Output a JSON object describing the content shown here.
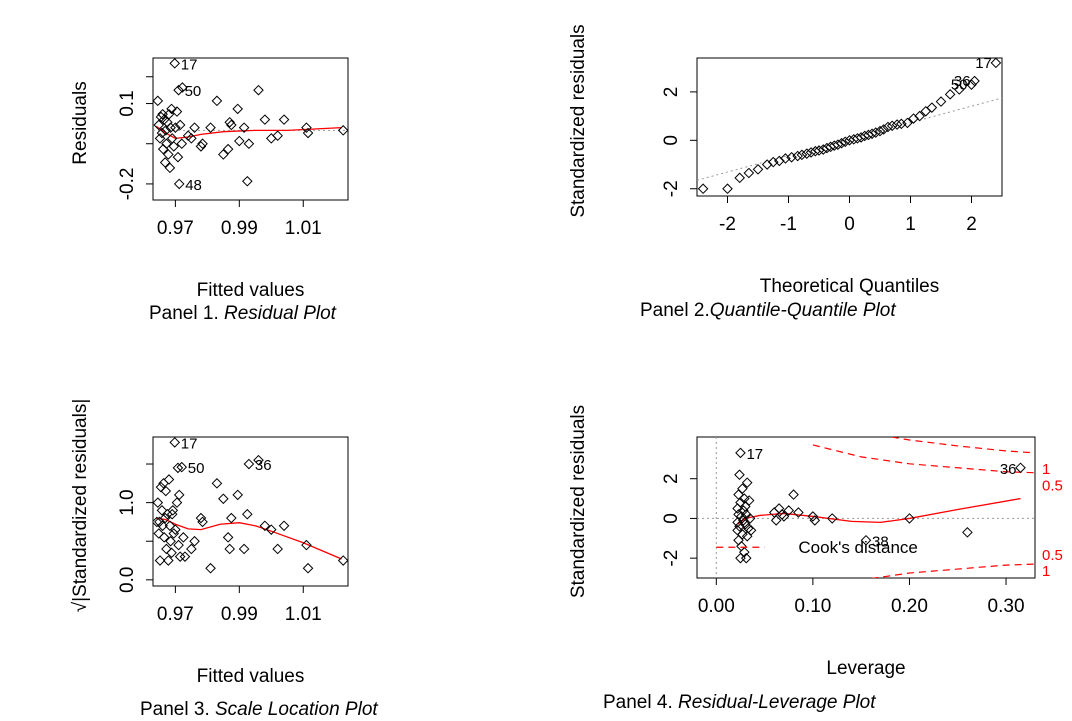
{
  "captions": [
    {
      "prefix": "Panel 1. ",
      "title": "Residual Plot"
    },
    {
      "prefix": "Panel 2.",
      "title": "Quantile-Quantile Plot"
    },
    {
      "prefix": "Panel 3. ",
      "title": "Scale Location Plot"
    },
    {
      "prefix": "Panel 4. ",
      "title": "Residual-Leverage Plot"
    }
  ],
  "colors": {
    "points": "#000000",
    "smoother": "#ff0000",
    "reference": "#999999",
    "cooks": "#ff0000"
  },
  "chart_data": [
    {
      "type": "scatter",
      "title": "",
      "xlabel": "Fitted values",
      "ylabel": "Residuals",
      "xlim": [
        0.963,
        1.024
      ],
      "ylim": [
        -0.26,
        0.27
      ],
      "xticks": [
        {
          "v": 0.97,
          "label": "0.97"
        },
        {
          "v": 0.99,
          "label": "0.99"
        },
        {
          "v": 1.01,
          "label": "1.01"
        }
      ],
      "yticks": [
        {
          "v": -0.2,
          "label": "-0.2"
        },
        {
          "v": 0.1,
          "label": "0.1"
        }
      ],
      "yminor": [
        0.2,
        -0.05
      ],
      "reference_line": {
        "y": 0,
        "style": "dotted"
      },
      "points": [
        [
          0.9645,
          0.11
        ],
        [
          0.9655,
          0.05
        ],
        [
          0.9648,
          0.02
        ],
        [
          0.9652,
          -0.03
        ],
        [
          0.966,
          0.06
        ],
        [
          0.9658,
          -0.01
        ],
        [
          0.9665,
          0.04
        ],
        [
          0.9662,
          -0.07
        ],
        [
          0.967,
          0.0
        ],
        [
          0.9668,
          -0.12
        ],
        [
          0.9675,
          0.03
        ],
        [
          0.9672,
          -0.05
        ],
        [
          0.968,
          0.06
        ],
        [
          0.9678,
          -0.09
        ],
        [
          0.9685,
          0.01
        ],
        [
          0.9683,
          -0.14
        ],
        [
          0.969,
          -0.03
        ],
        [
          0.9688,
          0.08
        ],
        [
          0.9695,
          -0.06
        ],
        [
          0.97,
          0.01
        ],
        [
          0.9705,
          0.07
        ],
        [
          0.9708,
          -0.1
        ],
        [
          0.9712,
          -0.2
        ],
        [
          0.9715,
          0.02
        ],
        [
          0.972,
          -0.05
        ],
        [
          0.9698,
          0.25
        ],
        [
          0.971,
          0.15
        ],
        [
          0.9722,
          0.16
        ],
        [
          0.974,
          -0.02
        ],
        [
          0.975,
          -0.03
        ],
        [
          0.976,
          0.01
        ],
        [
          0.978,
          -0.06
        ],
        [
          0.9785,
          -0.05
        ],
        [
          0.981,
          0.01
        ],
        [
          0.983,
          0.11
        ],
        [
          0.985,
          -0.09
        ],
        [
          0.9865,
          -0.07
        ],
        [
          0.987,
          0.03
        ],
        [
          0.9875,
          0.02
        ],
        [
          0.9895,
          0.08
        ],
        [
          0.99,
          -0.04
        ],
        [
          0.9915,
          0.01
        ],
        [
          0.9925,
          -0.19
        ],
        [
          0.993,
          -0.05
        ],
        [
          0.996,
          0.15
        ],
        [
          0.998,
          0.04
        ],
        [
          1.0,
          -0.03
        ],
        [
          1.002,
          -0.02
        ],
        [
          1.004,
          0.04
        ],
        [
          1.011,
          0.01
        ],
        [
          1.0115,
          -0.01
        ],
        [
          1.0225,
          0.0
        ]
      ],
      "labels": [
        {
          "x": 0.9698,
          "y": 0.25,
          "text": "17"
        },
        {
          "x": 0.971,
          "y": 0.15,
          "text": "50"
        },
        {
          "x": 0.9712,
          "y": -0.2,
          "text": "48"
        }
      ],
      "smoother": [
        [
          0.964,
          0.015
        ],
        [
          0.967,
          -0.01
        ],
        [
          0.97,
          -0.03
        ],
        [
          0.974,
          -0.025
        ],
        [
          0.978,
          -0.015
        ],
        [
          0.985,
          -0.005
        ],
        [
          0.995,
          0.0
        ],
        [
          1.005,
          0.0
        ],
        [
          1.022,
          0.01
        ]
      ]
    },
    {
      "type": "scatter",
      "title": "",
      "xlabel": "Theoretical Quantiles",
      "ylabel": "Standardized residuals",
      "xlim": [
        -2.5,
        2.5
      ],
      "ylim": [
        -2.3,
        3.4
      ],
      "xticks": [
        {
          "v": -2,
          "label": "-2"
        },
        {
          "v": -1,
          "label": "-1"
        },
        {
          "v": 0,
          "label": "0"
        },
        {
          "v": 1,
          "label": "1"
        },
        {
          "v": 2,
          "label": "2"
        }
      ],
      "yticks": [
        {
          "v": -2,
          "label": "-2"
        },
        {
          "v": 0,
          "label": "0"
        },
        {
          "v": 2,
          "label": "2"
        }
      ],
      "reference_line": {
        "x1": -2.5,
        "y1": -1.65,
        "x2": 2.5,
        "y2": 1.75,
        "style": "dotted"
      },
      "points": [
        [
          -2.4,
          -2.0
        ],
        [
          -2.0,
          -2.0
        ],
        [
          -1.8,
          -1.55
        ],
        [
          -1.65,
          -1.35
        ],
        [
          -1.5,
          -1.2
        ],
        [
          -1.35,
          -1.0
        ],
        [
          -1.25,
          -0.9
        ],
        [
          -1.15,
          -0.85
        ],
        [
          -1.05,
          -0.75
        ],
        [
          -0.95,
          -0.7
        ],
        [
          -0.85,
          -0.65
        ],
        [
          -0.78,
          -0.6
        ],
        [
          -0.7,
          -0.55
        ],
        [
          -0.63,
          -0.5
        ],
        [
          -0.56,
          -0.45
        ],
        [
          -0.5,
          -0.42
        ],
        [
          -0.43,
          -0.38
        ],
        [
          -0.37,
          -0.32
        ],
        [
          -0.31,
          -0.27
        ],
        [
          -0.25,
          -0.22
        ],
        [
          -0.19,
          -0.18
        ],
        [
          -0.13,
          -0.12
        ],
        [
          -0.07,
          -0.06
        ],
        [
          0.0,
          0.0
        ],
        [
          0.07,
          0.04
        ],
        [
          0.13,
          0.08
        ],
        [
          0.19,
          0.12
        ],
        [
          0.25,
          0.18
        ],
        [
          0.31,
          0.22
        ],
        [
          0.37,
          0.27
        ],
        [
          0.43,
          0.32
        ],
        [
          0.5,
          0.38
        ],
        [
          0.56,
          0.45
        ],
        [
          0.63,
          0.55
        ],
        [
          0.7,
          0.6
        ],
        [
          0.78,
          0.65
        ],
        [
          0.85,
          0.68
        ],
        [
          0.95,
          0.72
        ],
        [
          1.05,
          0.9
        ],
        [
          1.15,
          1.0
        ],
        [
          1.25,
          1.2
        ],
        [
          1.35,
          1.35
        ],
        [
          1.5,
          1.6
        ],
        [
          1.65,
          1.9
        ],
        [
          1.8,
          2.1
        ],
        [
          2.0,
          2.3
        ],
        [
          2.05,
          2.45
        ],
        [
          2.4,
          3.2
        ]
      ],
      "labels": [
        {
          "x": 2.4,
          "y": 3.2,
          "text": "17"
        },
        {
          "x": 2.05,
          "y": 2.45,
          "text": "36"
        },
        {
          "x": 2.0,
          "y": 2.3,
          "text": "50"
        }
      ]
    },
    {
      "type": "scatter",
      "title": "",
      "xlabel": "Fitted values",
      "ylabel": "√|Standardized residuals|",
      "xlim": [
        0.963,
        1.024
      ],
      "ylim": [
        -0.08,
        1.85
      ],
      "xticks": [
        {
          "v": 0.97,
          "label": "0.97"
        },
        {
          "v": 0.99,
          "label": "0.99"
        },
        {
          "v": 1.01,
          "label": "1.01"
        }
      ],
      "yticks": [
        {
          "v": 0.0,
          "label": "0.0"
        },
        {
          "v": 1.0,
          "label": "1.0"
        }
      ],
      "yminor": [
        0.5,
        1.5
      ],
      "points": [
        [
          0.9642,
          0.75
        ],
        [
          0.9645,
          1.0
        ],
        [
          0.9648,
          0.6
        ],
        [
          0.965,
          0.75
        ],
        [
          0.9652,
          0.25
        ],
        [
          0.9655,
          1.2
        ],
        [
          0.9658,
          0.9
        ],
        [
          0.966,
          0.7
        ],
        [
          0.9663,
          1.25
        ],
        [
          0.9665,
          0.55
        ],
        [
          0.9668,
          0.8
        ],
        [
          0.967,
          1.15
        ],
        [
          0.9672,
          0.4
        ],
        [
          0.9675,
          0.85
        ],
        [
          0.9678,
          0.25
        ],
        [
          0.968,
          1.3
        ],
        [
          0.9683,
          0.7
        ],
        [
          0.9685,
          0.5
        ],
        [
          0.9688,
          0.35
        ],
        [
          0.969,
          0.85
        ],
        [
          0.9692,
          0.9
        ],
        [
          0.9695,
          0.6
        ],
        [
          0.9698,
          1.78
        ],
        [
          0.97,
          0.65
        ],
        [
          0.9705,
          1.0
        ],
        [
          0.9708,
          1.45
        ],
        [
          0.971,
          0.45
        ],
        [
          0.9712,
          1.1
        ],
        [
          0.9715,
          0.3
        ],
        [
          0.972,
          1.46
        ],
        [
          0.9725,
          0.55
        ],
        [
          0.973,
          0.3
        ],
        [
          0.975,
          0.4
        ],
        [
          0.976,
          0.5
        ],
        [
          0.978,
          0.8
        ],
        [
          0.9785,
          0.75
        ],
        [
          0.981,
          0.15
        ],
        [
          0.983,
          1.25
        ],
        [
          0.985,
          1.05
        ],
        [
          0.9865,
          0.55
        ],
        [
          0.987,
          0.4
        ],
        [
          0.9875,
          0.8
        ],
        [
          0.9895,
          1.1
        ],
        [
          0.9915,
          0.4
        ],
        [
          0.9925,
          0.85
        ],
        [
          0.993,
          1.5
        ],
        [
          0.996,
          1.55
        ],
        [
          0.998,
          0.7
        ],
        [
          1.0,
          0.65
        ],
        [
          1.002,
          0.4
        ],
        [
          1.004,
          0.7
        ],
        [
          1.011,
          0.45
        ],
        [
          1.0115,
          0.15
        ],
        [
          1.0225,
          0.25
        ]
      ],
      "labels": [
        {
          "x": 0.9698,
          "y": 1.78,
          "text": "17"
        },
        {
          "x": 0.972,
          "y": 1.46,
          "text": "50"
        },
        {
          "x": 0.993,
          "y": 1.5,
          "text": "36"
        }
      ],
      "smoother": [
        [
          0.964,
          0.8
        ],
        [
          0.967,
          0.78
        ],
        [
          0.97,
          0.72
        ],
        [
          0.974,
          0.66
        ],
        [
          0.978,
          0.65
        ],
        [
          0.984,
          0.72
        ],
        [
          0.99,
          0.74
        ],
        [
          0.995,
          0.7
        ],
        [
          1.0,
          0.63
        ],
        [
          1.01,
          0.48
        ],
        [
          1.022,
          0.27
        ]
      ]
    },
    {
      "type": "scatter",
      "title": "",
      "xlabel": "Leverage",
      "ylabel": "Standardized residuals",
      "xlim": [
        -0.02,
        0.33
      ],
      "ylim": [
        -3.0,
        4.1
      ],
      "xticks": [
        {
          "v": 0.0,
          "label": "0.00"
        },
        {
          "v": 0.1,
          "label": "0.10"
        },
        {
          "v": 0.2,
          "label": "0.20"
        },
        {
          "v": 0.3,
          "label": "0.30"
        }
      ],
      "yticks": [
        {
          "v": -2,
          "label": "-2"
        },
        {
          "v": 0,
          "label": "0"
        },
        {
          "v": 2,
          "label": "2"
        }
      ],
      "reference_line": {
        "y": 0,
        "style": "dotted",
        "x": 0,
        "x_style": "dotted"
      },
      "legend": "Cook's distance",
      "cooks_contours": [
        {
          "level": "1",
          "upper": [
            [
              0.02,
              9
            ],
            [
              0.05,
              7
            ],
            [
              0.1,
              5.1
            ],
            [
              0.15,
              4.35
            ],
            [
              0.2,
              3.95
            ],
            [
              0.25,
              3.65
            ],
            [
              0.3,
              3.4
            ],
            [
              0.33,
              3.3
            ]
          ]
        },
        {
          "level": "0.5",
          "upper": [
            [
              0.1,
              3.7
            ],
            [
              0.15,
              3.1
            ],
            [
              0.2,
              2.75
            ],
            [
              0.25,
              2.55
            ],
            [
              0.3,
              2.35
            ],
            [
              0.33,
              2.3
            ]
          ]
        }
      ],
      "contour_labels": [
        {
          "text": "1",
          "y": 2.55
        },
        {
          "text": "0.5",
          "y": 1.7
        },
        {
          "text": "0.5",
          "y": -1.8
        },
        {
          "text": "1",
          "y": -2.6
        }
      ],
      "points": [
        [
          0.022,
          -0.2
        ],
        [
          0.022,
          0.5
        ],
        [
          0.022,
          -0.6
        ],
        [
          0.023,
          1.2
        ],
        [
          0.023,
          0.2
        ],
        [
          0.023,
          -1.1
        ],
        [
          0.024,
          2.2
        ],
        [
          0.024,
          -0.4
        ],
        [
          0.025,
          0.8
        ],
        [
          0.025,
          -2.0
        ],
        [
          0.026,
          0.1
        ],
        [
          0.026,
          -1.4
        ],
        [
          0.027,
          1.5
        ],
        [
          0.027,
          -0.8
        ],
        [
          0.028,
          0.4
        ],
        [
          0.028,
          -0.1
        ],
        [
          0.029,
          -1.7
        ],
        [
          0.029,
          1.0
        ],
        [
          0.03,
          -0.3
        ],
        [
          0.03,
          0.6
        ],
        [
          0.031,
          -2.0
        ],
        [
          0.031,
          0.2
        ],
        [
          0.032,
          1.8
        ],
        [
          0.032,
          -0.9
        ],
        [
          0.033,
          -0.5
        ],
        [
          0.034,
          0.9
        ],
        [
          0.035,
          0.0
        ],
        [
          0.036,
          -0.6
        ],
        [
          0.025,
          3.3
        ],
        [
          0.06,
          0.3
        ],
        [
          0.062,
          -0.1
        ],
        [
          0.065,
          0.5
        ],
        [
          0.068,
          0.2
        ],
        [
          0.07,
          0.1
        ],
        [
          0.075,
          0.4
        ],
        [
          0.08,
          1.2
        ],
        [
          0.085,
          0.3
        ],
        [
          0.1,
          0.1
        ],
        [
          0.102,
          -0.1
        ],
        [
          0.12,
          0.0
        ],
        [
          0.155,
          -1.1
        ],
        [
          0.2,
          0.0
        ],
        [
          0.26,
          -0.7
        ],
        [
          0.315,
          2.55
        ]
      ],
      "labels": [
        {
          "x": 0.025,
          "y": 3.3,
          "text": "17"
        },
        {
          "x": 0.315,
          "y": 2.55,
          "text": "36"
        },
        {
          "x": 0.155,
          "y": -1.1,
          "text": "38"
        }
      ],
      "smoother": [
        [
          0.022,
          -0.3
        ],
        [
          0.03,
          0.0
        ],
        [
          0.045,
          0.15
        ],
        [
          0.07,
          0.25
        ],
        [
          0.1,
          0.1
        ],
        [
          0.14,
          -0.15
        ],
        [
          0.17,
          -0.2
        ],
        [
          0.2,
          0.0
        ],
        [
          0.25,
          0.45
        ],
        [
          0.315,
          1.0
        ]
      ]
    }
  ]
}
